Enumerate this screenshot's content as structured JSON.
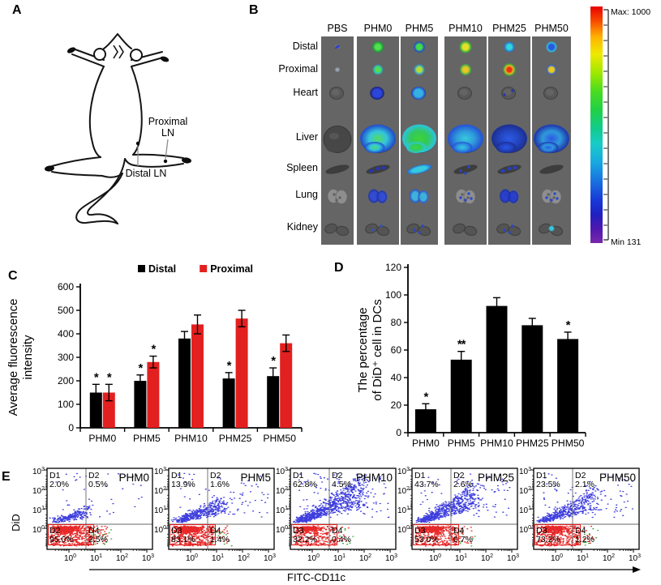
{
  "panels": {
    "A": {
      "letter": "A",
      "labels": {
        "proximal_line1": "Proximal",
        "proximal_line2": "LN",
        "distal": "Distal LN"
      }
    },
    "B": {
      "letter": "B",
      "columns": [
        "PBS",
        "PHM0",
        "PHM5",
        "PHM10",
        "PHM25",
        "PHM50"
      ],
      "rows": [
        "Distal",
        "Proximal",
        "Heart",
        "Liver",
        "Spleen",
        "Lung",
        "Kidney"
      ],
      "colorbar": {
        "max_label": "Max: 1000",
        "min_label": "Min 131"
      },
      "fluorescence": [
        [
          {
            "k": "dash",
            "c": [
              "#2b3fd4",
              "#2b3fd4"
            ]
          },
          {
            "k": "dot",
            "c": [
              "#98a2b0",
              "#98a2b000"
            ],
            "r": 1.5
          },
          null,
          null,
          null,
          null,
          null
        ],
        [
          {
            "k": "dot",
            "c": [
              "#50e050",
              "#1f9e3a"
            ],
            "r": 5
          },
          {
            "k": "dot",
            "c": [
              "#50e050",
              "#28b2c6"
            ],
            "r": 4
          },
          {
            "k": "heart",
            "c": [
              "#2a44e0",
              "#16207c"
            ]
          },
          {
            "k": "liver",
            "c": [
              "#52e062",
              "#33c9e0",
              "#2151d0"
            ]
          },
          {
            "k": "spleen_specks",
            "c": [
              "#2434c2"
            ]
          },
          {
            "k": "lung",
            "c": [
              "#2a46d8",
              "#1d2f9e"
            ]
          },
          {
            "k": "specks",
            "c": [
              "#3252c4"
            ],
            "n": 2
          }
        ],
        [
          {
            "k": "dot",
            "c": [
              "#42dc48",
              "#2250c8"
            ],
            "r": 5
          },
          {
            "k": "dot",
            "c": [
              "#b6dc38",
              "#2f9ed0"
            ],
            "r": 4.5
          },
          {
            "k": "heart",
            "c": [
              "#31b5e8",
              "#2343cc"
            ]
          },
          {
            "k": "liver",
            "c": [
              "#3cd83c",
              "#33cc58",
              "#2ac8dc"
            ]
          },
          {
            "k": "spleen",
            "c": [
              "#35d0e8",
              "#2565d4"
            ]
          },
          {
            "k": "lung",
            "c": [
              "#39b5e0",
              "#2243c4"
            ]
          },
          {
            "k": "specks",
            "c": [
              "#2947c8"
            ],
            "n": 3
          }
        ],
        [
          {
            "k": "dot",
            "c": [
              "#e4e02a",
              "#3cb43c"
            ],
            "r": 5.5
          },
          {
            "k": "dot",
            "c": [
              "#e8c623",
              "#4ab046"
            ],
            "r": 5
          },
          null,
          {
            "k": "liver",
            "c": [
              "#37cce0",
              "#2f9ee0",
              "#2456d8"
            ]
          },
          {
            "k": "specks",
            "c": [
              "#2a44d0"
            ],
            "n": 3
          },
          {
            "k": "specks",
            "c": [
              "#2a44d0"
            ],
            "n": 4
          },
          null
        ],
        [
          {
            "k": "dot",
            "c": [
              "#31d5e0",
              "#2579d0"
            ],
            "r": 4.5
          },
          {
            "k": "dot3",
            "c": [
              "#e83018",
              "#e8b622",
              "#3ca040"
            ],
            "r": 5.5
          },
          {
            "k": "specks",
            "c": [
              "#2337b0"
            ],
            "n": 2
          },
          {
            "k": "liver",
            "c": [
              "#2a5ae8",
              "#2347c8",
              "#1c3096"
            ]
          },
          {
            "k": "spleen_specks",
            "c": [
              "#2440cc"
            ]
          },
          {
            "k": "lung",
            "c": [
              "#2139d0",
              "#192d9e"
            ]
          },
          {
            "k": "specks",
            "c": [
              "#2a47c8"
            ],
            "n": 3
          }
        ],
        [
          {
            "k": "dot",
            "c": [
              "#2a58e0",
              "#2cc0e0"
            ],
            "r": 4.5
          },
          {
            "k": "dot",
            "c": [
              "#e8ca22",
              "#3662c8"
            ],
            "r": 4.5
          },
          null,
          {
            "k": "liver",
            "c": [
              "#2a58e8",
              "#2f9ce0",
              "#1e3cb0"
            ]
          },
          null,
          {
            "k": "specks",
            "c": [
              "#2a47d0"
            ],
            "n": 4
          },
          {
            "k": "dot",
            "c": [
              "#33c8e0",
              "#33c8e000"
            ],
            "r": 2.5
          }
        ]
      ]
    },
    "C": {
      "letter": "C"
    },
    "D": {
      "letter": "D"
    },
    "E": {
      "letter": "E",
      "x_axis_label": "FITC-CD11c",
      "y_axis_label": "DiD",
      "tick_exponents": [
        0,
        1,
        2,
        3
      ],
      "colors": {
        "blue": "#1c1cd8",
        "red": "#e51212",
        "green": "#2aa02a",
        "gate": "#e02020"
      },
      "plots": [
        {
          "title": "PHM0",
          "q": [
            [
              "D1",
              "2.0%"
            ],
            [
              "D2",
              "0.5%"
            ],
            [
              "D2",
              "95.0%"
            ],
            [
              "D4",
              "2.5%"
            ]
          ],
          "cloud": {
            "blue": 260,
            "reach_x": 38,
            "reach_y": 17,
            "red": 950,
            "green": 22
          }
        },
        {
          "title": "PHM5",
          "q": [
            [
              "D1",
              "13.9%"
            ],
            [
              "D2",
              "1.6%"
            ],
            [
              "D3",
              "83.1%"
            ],
            [
              "D4",
              "1.4%"
            ]
          ],
          "cloud": {
            "blue": 500,
            "reach_x": 55,
            "reach_y": 28,
            "red": 880,
            "green": 16
          }
        },
        {
          "title": "PHM10",
          "q": [
            [
              "D1",
              "62.8%"
            ],
            [
              "D2",
              "4.5%"
            ],
            [
              "D3",
              "32.2%"
            ],
            [
              "D4",
              "0.4%"
            ]
          ],
          "cloud": {
            "blue": 900,
            "reach_x": 78,
            "reach_y": 52,
            "red": 560,
            "green": 10
          }
        },
        {
          "title": "PHM25",
          "q": [
            [
              "D1",
              "43.7%"
            ],
            [
              "D2",
              "2.6%"
            ],
            [
              "D3",
              "53.0%"
            ],
            [
              "D4",
              "0.7%"
            ]
          ],
          "cloud": {
            "blue": 720,
            "reach_x": 70,
            "reach_y": 46,
            "red": 720,
            "green": 10
          }
        },
        {
          "title": "PHM50",
          "q": [
            [
              "D1",
              "23.5%"
            ],
            [
              "D2",
              "2.1%"
            ],
            [
              "D3",
              "73.2%"
            ],
            [
              "D4",
              "1.2%"
            ]
          ],
          "cloud": {
            "blue": 520,
            "reach_x": 64,
            "reach_y": 40,
            "red": 820,
            "green": 14
          }
        }
      ]
    }
  },
  "chart_data": [
    {
      "id": "panel_C",
      "type": "bar",
      "categories": [
        "PHM0",
        "PHM5",
        "PHM10",
        "PHM25",
        "PHM50"
      ],
      "series": [
        {
          "name": "Distal",
          "color": "#000000",
          "values": [
            150,
            200,
            380,
            210,
            220
          ],
          "errors": [
            35,
            25,
            30,
            25,
            35
          ],
          "stars": [
            "*",
            "*",
            "",
            "*",
            "*"
          ]
        },
        {
          "name": "Proximal",
          "color": "#e32020",
          "values": [
            150,
            280,
            440,
            465,
            360
          ],
          "errors": [
            35,
            25,
            40,
            35,
            35
          ],
          "stars": [
            "*",
            "*",
            "",
            "",
            ""
          ]
        }
      ],
      "ylabel_lines": [
        "Average fluorescence",
        "intensity"
      ],
      "ylim": [
        0,
        600
      ],
      "ytick_step": 100,
      "legend_position": "top",
      "grid": false
    },
    {
      "id": "panel_D",
      "type": "bar",
      "categories": [
        "PHM0",
        "PHM5",
        "PHM10",
        "PHM25",
        "PHM50"
      ],
      "series": [
        {
          "name": "DiD+ cells in DCs",
          "color": "#000000",
          "values": [
            17,
            53,
            92,
            78,
            68
          ],
          "errors": [
            4,
            6,
            6,
            5,
            5
          ],
          "stars": [
            "*",
            "**",
            "",
            "",
            "*"
          ]
        }
      ],
      "ylabel_lines": [
        "The percentage",
        "of DiD⁺ cell in DCs"
      ],
      "ylim": [
        0,
        120
      ],
      "ytick_step": 20,
      "legend_position": "none",
      "grid": false
    }
  ]
}
